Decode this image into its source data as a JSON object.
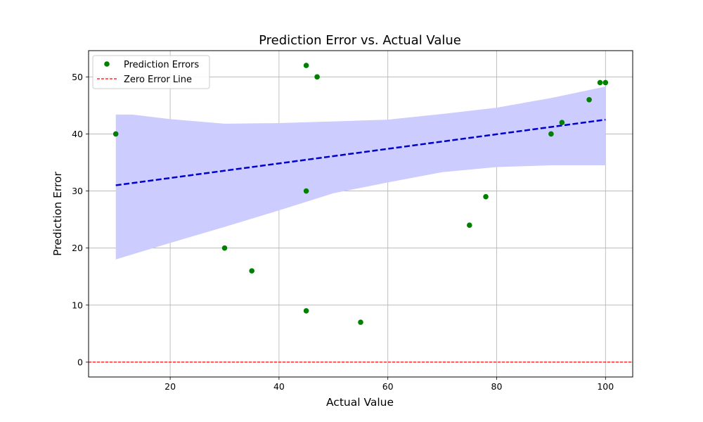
{
  "chart_data": {
    "type": "scatter",
    "title": "Prediction Error vs. Actual Value",
    "xlabel": "Actual Value",
    "ylabel": "Prediction Error",
    "xlim": [
      5,
      105
    ],
    "ylim": [
      -2.6,
      54.6
    ],
    "xticks": [
      20,
      40,
      60,
      80,
      100
    ],
    "yticks": [
      0,
      10,
      20,
      30,
      40,
      50
    ],
    "grid": true,
    "legend_position": "top-left",
    "series": [
      {
        "name": "Prediction Errors",
        "kind": "scatter",
        "color": "#008000",
        "points": [
          {
            "x": 10,
            "y": 40
          },
          {
            "x": 30,
            "y": 20
          },
          {
            "x": 35,
            "y": 16
          },
          {
            "x": 45,
            "y": 52
          },
          {
            "x": 45,
            "y": 30
          },
          {
            "x": 45,
            "y": 9
          },
          {
            "x": 47,
            "y": 50
          },
          {
            "x": 55,
            "y": 7
          },
          {
            "x": 75,
            "y": 24
          },
          {
            "x": 78,
            "y": 29
          },
          {
            "x": 90,
            "y": 40
          },
          {
            "x": 92,
            "y": 42
          },
          {
            "x": 97,
            "y": 46
          },
          {
            "x": 99,
            "y": 49
          },
          {
            "x": 100,
            "y": 49
          }
        ]
      },
      {
        "name": "Zero Error Line",
        "kind": "hline",
        "y": 0,
        "color": "#ff0000",
        "style": "dashed"
      }
    ],
    "regression": {
      "color": "#0000cc",
      "style": "dashed",
      "line": [
        {
          "x": 10,
          "y": 31
        },
        {
          "x": 100,
          "y": 42.5
        }
      ],
      "band_color": "#ccccff",
      "band_upper": [
        {
          "x": 10,
          "y": 43.4
        },
        {
          "x": 13,
          "y": 43.4
        },
        {
          "x": 20,
          "y": 42.6
        },
        {
          "x": 30,
          "y": 41.8
        },
        {
          "x": 40,
          "y": 41.9
        },
        {
          "x": 50,
          "y": 42.2
        },
        {
          "x": 60,
          "y": 42.5
        },
        {
          "x": 70,
          "y": 43.5
        },
        {
          "x": 80,
          "y": 44.6
        },
        {
          "x": 90,
          "y": 46.3
        },
        {
          "x": 100,
          "y": 48.3
        }
      ],
      "band_lower": [
        {
          "x": 10,
          "y": 18.0
        },
        {
          "x": 20,
          "y": 20.9
        },
        {
          "x": 30,
          "y": 23.7
        },
        {
          "x": 40,
          "y": 26.6
        },
        {
          "x": 50,
          "y": 29.6
        },
        {
          "x": 60,
          "y": 31.5
        },
        {
          "x": 70,
          "y": 33.3
        },
        {
          "x": 80,
          "y": 34.2
        },
        {
          "x": 90,
          "y": 34.5
        },
        {
          "x": 100,
          "y": 34.5
        }
      ]
    }
  }
}
